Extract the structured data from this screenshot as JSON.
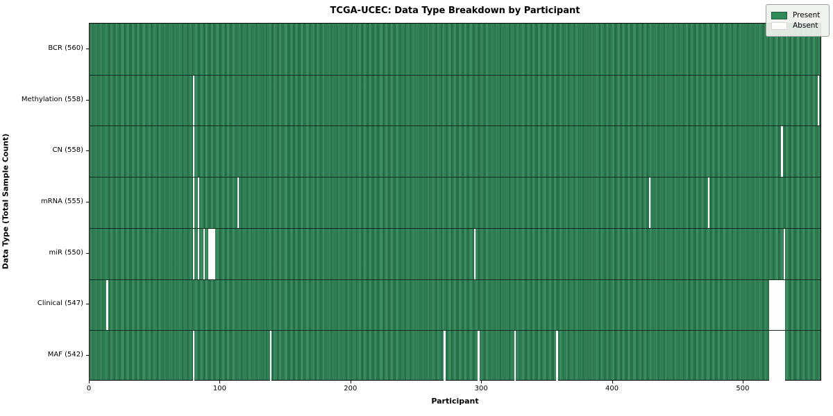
{
  "chart_data": {
    "type": "heatmap",
    "title": "TCGA-UCEC: Data Type Breakdown by Participant",
    "xlabel": "Participant",
    "ylabel": "Data Type (Total Sample Count)",
    "participants_total": 560,
    "x_ticks": [
      0,
      100,
      200,
      300,
      400,
      500
    ],
    "xlim": [
      0,
      560
    ],
    "grid": false,
    "legend_position": "upper right",
    "legend": [
      {
        "label": "Present",
        "color": "#2e8b57"
      },
      {
        "label": "Absent",
        "color": "#ffffff"
      }
    ],
    "cell_states": {
      "present": 1,
      "absent": 0
    },
    "rows": [
      {
        "label": "BCR (560)",
        "name": "BCR",
        "present_count": 560,
        "absent_participants": []
      },
      {
        "label": "Methylation (558)",
        "name": "Methylation",
        "present_count": 558,
        "absent_participants": [
          79,
          557
        ]
      },
      {
        "label": "CN (558)",
        "name": "CN",
        "present_count": 558,
        "absent_participants": [
          79,
          529
        ]
      },
      {
        "label": "mRNA (555)",
        "name": "mRNA",
        "present_count": 555,
        "absent_participants": [
          79,
          83,
          113,
          428,
          473
        ]
      },
      {
        "label": "miR (550)",
        "name": "miR",
        "present_count": 550,
        "absent_participants": [
          79,
          83,
          87,
          91,
          92,
          93,
          94,
          95,
          294,
          531
        ]
      },
      {
        "label": "Clinical (547)",
        "name": "Clinical",
        "present_count": 547,
        "absent_participants": [
          13,
          520,
          521,
          522,
          523,
          524,
          525,
          526,
          527,
          528,
          529,
          530,
          531
        ]
      },
      {
        "label": "MAF (542)",
        "name": "MAF",
        "present_count": 542,
        "absent_participants": [
          79,
          138,
          271,
          297,
          325,
          357,
          520,
          521,
          522,
          523,
          524,
          525,
          526,
          527,
          528,
          529,
          530,
          531
        ]
      }
    ]
  }
}
